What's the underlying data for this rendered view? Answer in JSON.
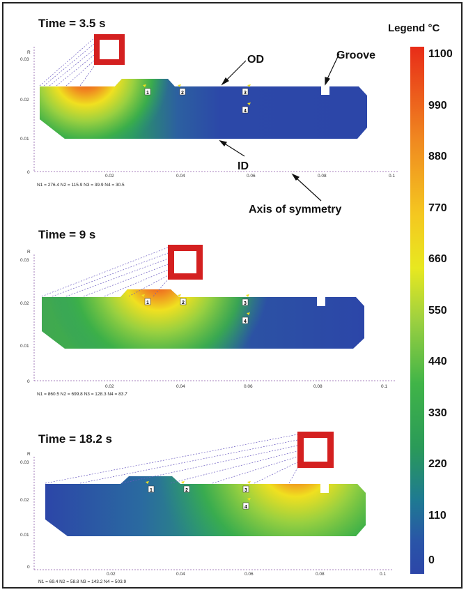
{
  "legend": {
    "title": "Legend °C",
    "values": [
      "1100",
      "990",
      "880",
      "770",
      "660",
      "550",
      "440",
      "330",
      "220",
      "110",
      "0"
    ]
  },
  "annotations": {
    "od": "OD",
    "groove": "Groove",
    "id": "ID",
    "axis": "Axis of symmetry"
  },
  "axis": {
    "r_label": "R",
    "r_ticks": [
      "0.03",
      "0.02",
      "0.01",
      "0"
    ],
    "x_ticks": [
      "0.02",
      "0.04",
      "0.06",
      "0.08",
      "0.1"
    ]
  },
  "probe_labels": [
    "1",
    "2",
    "3",
    "4"
  ],
  "panels": [
    {
      "title": "Time = 3.5 s",
      "readout": "N1 = 276.4   N2 = 115.9   N3 =  39.9   N4 =  30.5"
    },
    {
      "title": "Time = 9 s",
      "readout": "N1 = 860.5   N2 = 699.8   N3 = 128.3   N4 =  83.7"
    },
    {
      "title": "Time = 18.2 s",
      "readout": "N1 =  69.4   N2 =  58.8   N3 = 143.2   N4 = 503.9"
    }
  ],
  "colors": {
    "cold": "#2b45a8",
    "hot": "#e83018",
    "inductor": "#d42020",
    "colorbar": [
      "#e83018",
      "#f2a020",
      "#f4e020",
      "#b8d838",
      "#3cb448",
      "#1e8a8c",
      "#2c48a8"
    ]
  }
}
